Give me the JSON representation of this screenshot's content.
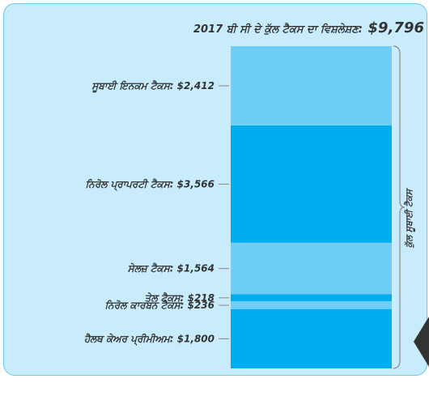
{
  "chart_data": {
    "type": "bar",
    "title": "2017 ਬੀ ਸੀ ਦੇ ਕੁੱਲ ਟੈਕਸ ਦਾ ਵਿਸ਼ਲੇਸ਼ਣ:",
    "total_label": "$9,796",
    "total": 9796,
    "brace_label": "ਕੁੱਲ ਸੂਬਾਈ ਟੈਕਸ",
    "categories": [
      "ਸੂਬਾਈ ਇਨਕਮ ਟੈਕਸ:",
      "ਨਿਰੋਲ ਪ੍ਰਾਪਰਟੀ ਟੈਕਸ:",
      "ਸੇਲਜ਼ ਟੈਕਸ:",
      "ਤੇਲ ਟੈਕਸ:",
      "ਨਿਰੋਲ ਕਾਰਬਨ ਟੈਕਸ:",
      "ਹੈਲਥ ਕੇਅਰ ਪ੍ਰੀਮੀਅਮ:"
    ],
    "value_labels": [
      "$2,412",
      "$3,566",
      "$1,564",
      "$218",
      "$236",
      "$1,800"
    ],
    "values": [
      2412,
      3566,
      1564,
      218,
      236,
      1800
    ],
    "colors": [
      "#6fcef6",
      "#00aeef",
      "#6fcef6",
      "#00aeef",
      "#6fcef6",
      "#00aeef"
    ]
  }
}
